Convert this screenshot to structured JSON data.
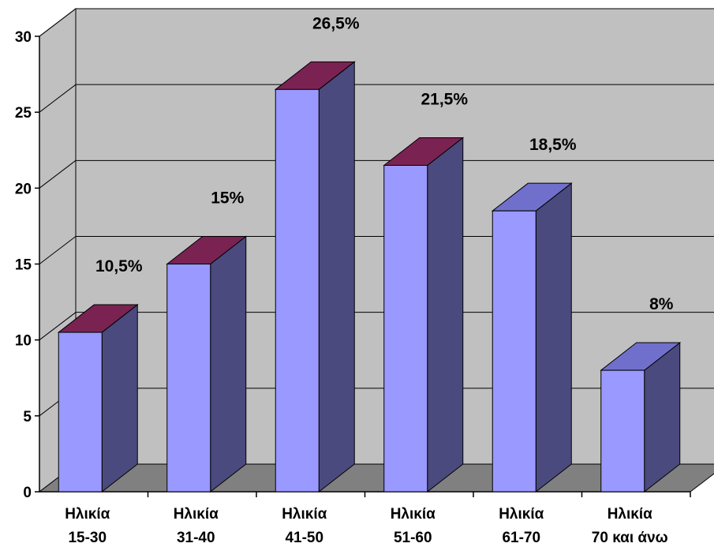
{
  "chart_data": {
    "type": "bar",
    "categories": [
      [
        "Ηλικία",
        "15-30"
      ],
      [
        "Ηλικία",
        "31-40"
      ],
      [
        "Ηλικία",
        "41-50"
      ],
      [
        "Ηλικία",
        "51-60"
      ],
      [
        "Ηλικία",
        "61-70"
      ],
      [
        "Ηλικία",
        "70 και άνω"
      ]
    ],
    "values": [
      10.5,
      15,
      26.5,
      21.5,
      18.5,
      8
    ],
    "data_labels": [
      "10,5%",
      "15%",
      "26,5%",
      "21,5%",
      "18,5%",
      "8%"
    ],
    "ylim": [
      0,
      30
    ],
    "yticks": [
      0,
      5,
      10,
      15,
      20,
      25,
      30
    ],
    "grid": true,
    "style": "3d-column",
    "colors": {
      "front": "#9999ff",
      "side": "#4a4a7e",
      "top_a": "#7a2352",
      "top_b": "#7070cc",
      "wall": "#c0c0c0",
      "floor": "#808080",
      "grid": "#000000"
    },
    "top_color_by_bar": [
      "top_a",
      "top_a",
      "top_a",
      "top_a",
      "top_b",
      "top_b"
    ]
  }
}
